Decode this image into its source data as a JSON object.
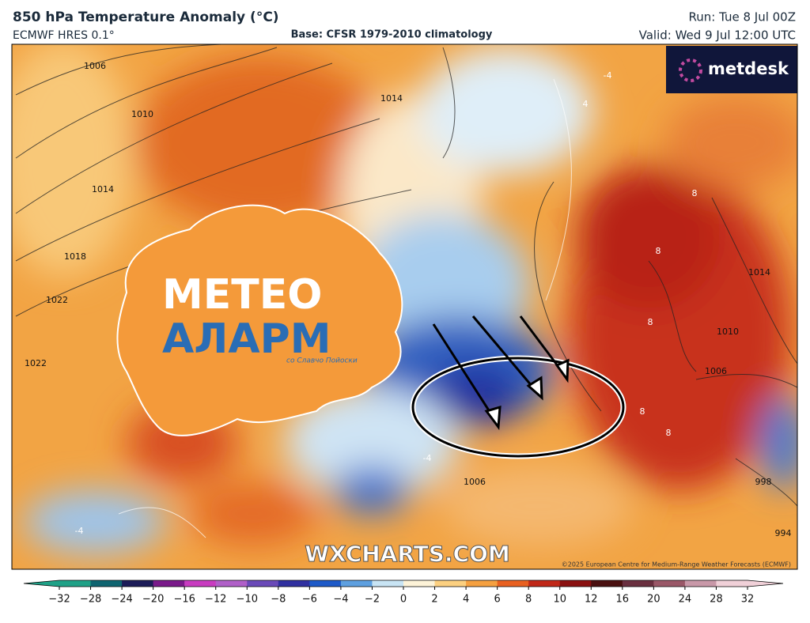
{
  "header": {
    "title": "850 hPa Temperature Anomaly (°C)",
    "model": "ECMWF HRES 0.1°",
    "base": "Base: CFSR 1979-2010 climatology",
    "run": "Run: Tue 8 Jul 00Z",
    "valid": "Valid: Wed 9 Jul 12:00 UTC"
  },
  "logos": {
    "metdesk": "metdesk",
    "meteo_line1": "МЕТЕО",
    "meteo_line2": "АЛАРМ",
    "meteo_tagline": "со Славчо Пойоски",
    "watermark": "WXCHARTS.COM"
  },
  "map": {
    "contour_labels": [
      "1006",
      "1010",
      "1014",
      "1018",
      "1022",
      "1014",
      "1022",
      "1006",
      "1010",
      "1014",
      "1006",
      "998",
      "994",
      "8",
      "8",
      "8",
      "8",
      "-4",
      "-4",
      "-4",
      "4",
      "8"
    ],
    "credit": "©2025 European Centre for Medium-Range Weather Forecasts (ECMWF)"
  },
  "colorbar": {
    "ticks": [
      {
        "value": -32,
        "label": "−32"
      },
      {
        "value": -28,
        "label": "−28"
      },
      {
        "value": -24,
        "label": "−24"
      },
      {
        "value": -20,
        "label": "−20"
      },
      {
        "value": -16,
        "label": "−16"
      },
      {
        "value": -12,
        "label": "−12"
      },
      {
        "value": -10,
        "label": "−10"
      },
      {
        "value": -8,
        "label": "−8"
      },
      {
        "value": -6,
        "label": "−6"
      },
      {
        "value": -4,
        "label": "−4"
      },
      {
        "value": -2,
        "label": "−2"
      },
      0,
      2,
      4,
      6,
      8,
      10,
      12,
      16,
      20,
      24,
      28,
      32
    ],
    "colors": [
      "#1fa187",
      "#0e6470",
      "#1c1c58",
      "#7a1a8a",
      "#c83cc0",
      "#b060c8",
      "#6a4ab8",
      "#3030a0",
      "#1e5ac8",
      "#5ea0e0",
      "#c8e4f4",
      "#fdf3d8",
      "#fcd080",
      "#f5a040",
      "#e86020",
      "#c02818",
      "#8a1010",
      "#4a1010",
      "#6a3040",
      "#9a5868",
      "#c898a8",
      "#f0d0d8"
    ]
  }
}
